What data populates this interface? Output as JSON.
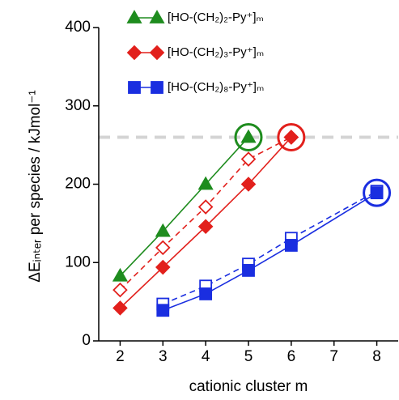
{
  "chart_data": {
    "type": "line",
    "xlabel": "cationic cluster m",
    "ylabel": "ΔEᵢₙₜₑᵣ per species / kJmol⁻¹",
    "xlim": [
      1.5,
      8.5
    ],
    "xticks": [
      2,
      3,
      4,
      5,
      6,
      7,
      8
    ],
    "ylim": [
      0,
      400
    ],
    "yticks": [
      0,
      100,
      200,
      300,
      400
    ],
    "reference_line": {
      "y": 260,
      "color": "#d4d4d4"
    },
    "series": [
      {
        "name": "[HO-(CH₂)₂-Py⁺]ₘ",
        "color": "#1e8c1e",
        "marker": "triangle",
        "filled": true,
        "dashed": false,
        "x": [
          2,
          3,
          4,
          5
        ],
        "values": [
          83,
          140,
          200,
          260
        ]
      },
      {
        "name": "[HO-(CH₂)₃-Py⁺]ₘ",
        "color": "#e2201c",
        "marker": "diamond",
        "filled": true,
        "dashed": false,
        "x": [
          2,
          3,
          4,
          5,
          6
        ],
        "values": [
          42,
          94,
          146,
          200,
          260
        ]
      },
      {
        "color": "#e2201c",
        "marker": "diamond",
        "filled": false,
        "dashed": true,
        "x": [
          2,
          3,
          4,
          5,
          6
        ],
        "values": [
          65,
          119,
          171,
          232,
          260
        ]
      },
      {
        "name": "[HO-(CH₂)₈-Py⁺]ₘ",
        "color": "#1a2ee0",
        "marker": "square",
        "filled": true,
        "dashed": false,
        "x": [
          3,
          4,
          5,
          6,
          8
        ],
        "values": [
          39,
          60,
          90,
          122,
          189
        ]
      },
      {
        "color": "#1a2ee0",
        "marker": "square",
        "filled": false,
        "dashed": true,
        "x": [
          3,
          4,
          5,
          6,
          8
        ],
        "values": [
          47,
          70,
          98,
          131,
          191
        ]
      }
    ],
    "highlights": [
      {
        "x": 5,
        "y": 260,
        "color": "#1e8c1e"
      },
      {
        "x": 6,
        "y": 260,
        "color": "#e2201c"
      },
      {
        "x": 8,
        "y": 189,
        "color": "#1a2ee0"
      }
    ]
  }
}
